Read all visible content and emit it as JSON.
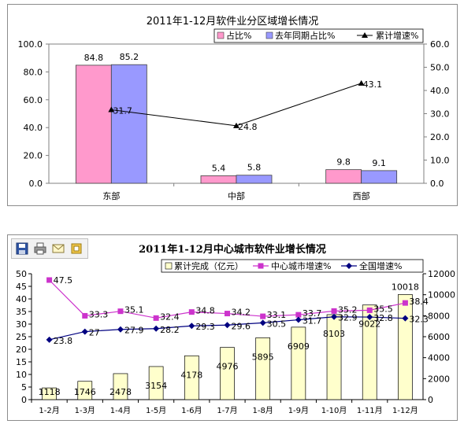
{
  "chart_data": [
    {
      "type": "bar",
      "title": "2011年1-12月软件业分区域增长情况",
      "categories": [
        "东部",
        "中部",
        "西部"
      ],
      "series": [
        {
          "name": "占比%",
          "kind": "bar",
          "axis": "left",
          "color": "#ff99cc",
          "values": [
            84.8,
            5.4,
            9.8
          ],
          "labels": [
            "84.8",
            "5.4",
            "9.8"
          ]
        },
        {
          "name": "去年同期占比%",
          "kind": "bar",
          "axis": "left",
          "color": "#9999ff",
          "values": [
            85.2,
            5.8,
            9.1
          ],
          "labels": [
            "85.2",
            "5.8",
            "9.1"
          ]
        },
        {
          "name": "累计增速%",
          "kind": "line",
          "axis": "right",
          "color": "#000000",
          "marker": "triangle",
          "values": [
            31.7,
            24.8,
            43.1
          ],
          "labels": [
            "31.7",
            "24.8",
            "43.1"
          ]
        }
      ],
      "yleft": {
        "lim": [
          0,
          100
        ],
        "ticks": [
          "0.0",
          "20.0",
          "40.0",
          "60.0",
          "80.0",
          "100.0"
        ]
      },
      "yright": {
        "lim": [
          0,
          60
        ],
        "ticks": [
          "0.0",
          "10.0",
          "20.0",
          "30.0",
          "40.0",
          "50.0",
          "60.0"
        ]
      },
      "legend": "top-right",
      "grid": false
    },
    {
      "type": "bar",
      "title": "2011年1-12月中心城市软件业增长情况",
      "categories": [
        "1-2月",
        "1-3月",
        "1-4月",
        "1-5月",
        "1-6月",
        "1-7月",
        "1-8月",
        "1-9月",
        "1-10月",
        "1-11月",
        "1-12月"
      ],
      "series": [
        {
          "name": "累计完成（亿元）",
          "kind": "bar",
          "axis": "right",
          "color": "#ffffcc",
          "values": [
            1118,
            1746,
            2478,
            3154,
            4178,
            4976,
            5895,
            6909,
            8103,
            9022,
            10018
          ],
          "labels": [
            "1118",
            "1746",
            "2478",
            "3154",
            "4178",
            "4976",
            "5895",
            "6909",
            "8103",
            "9022",
            "10018"
          ]
        },
        {
          "name": "中心城市增速%",
          "kind": "line",
          "axis": "left",
          "color": "#cc33cc",
          "marker": "square",
          "values": [
            47.5,
            33.3,
            35.1,
            32.4,
            34.8,
            34.2,
            33.1,
            33.7,
            35.2,
            35.5,
            38.4
          ],
          "labels": [
            "47.5",
            "33.3",
            "35.1",
            "32.4",
            "34.8",
            "34.2",
            "33.1",
            "33.7",
            "35.2",
            "35.5",
            "38.4"
          ]
        },
        {
          "name": "全国增速%",
          "kind": "line",
          "axis": "left",
          "color": "#000080",
          "marker": "diamond",
          "values": [
            23.8,
            27,
            27.9,
            28.2,
            29.3,
            29.6,
            30.5,
            31.7,
            32.9,
            32.8,
            32.3
          ],
          "labels": [
            "23.8",
            "27",
            "27.9",
            "28.2",
            "29.3",
            "29.6",
            "30.5",
            "31.7",
            "32.9",
            "32.8",
            "32.3"
          ]
        }
      ],
      "yleft": {
        "lim": [
          0,
          50
        ],
        "ticks": [
          "0",
          "5",
          "10",
          "15",
          "20",
          "25",
          "30",
          "35",
          "40",
          "45",
          "50"
        ]
      },
      "yright": {
        "lim": [
          0,
          12000
        ],
        "ticks": [
          "0",
          "2000",
          "4000",
          "6000",
          "8000",
          "10000",
          "12000"
        ]
      },
      "legend": "top-right",
      "grid": false
    }
  ],
  "toolbar": {
    "icons": [
      "save-icon",
      "print-icon",
      "email-icon",
      "export-icon"
    ]
  }
}
